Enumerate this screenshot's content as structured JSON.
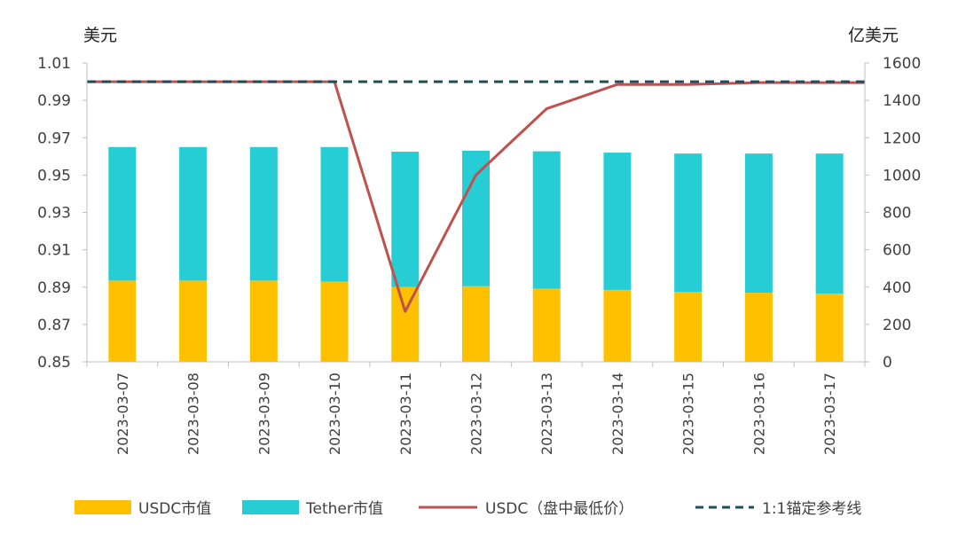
{
  "chart_data": {
    "type": "bar",
    "stacked": true,
    "left_axis_unit": "美元",
    "right_axis_unit": "亿美元",
    "categories": [
      "2023-03-07",
      "2023-03-08",
      "2023-03-09",
      "2023-03-10",
      "2023-03-11",
      "2023-03-12",
      "2023-03-13",
      "2023-03-14",
      "2023-03-15",
      "2023-03-16",
      "2023-03-17"
    ],
    "left_ylim": [
      0.85,
      1.01
    ],
    "left_ticks": [
      "0.85",
      "0.87",
      "0.89",
      "0.91",
      "0.93",
      "0.95",
      "0.97",
      "0.99",
      "1.01"
    ],
    "right_ylim": [
      0,
      1600
    ],
    "right_ticks": [
      "0",
      "200",
      "400",
      "600",
      "800",
      "1000",
      "1200",
      "1400",
      "1600"
    ],
    "bar_series": [
      {
        "name": "USDC市值",
        "color": "#FFC000",
        "axis": "right",
        "values": [
          435,
          435,
          435,
          430,
          400,
          405,
          392,
          385,
          375,
          370,
          365
        ]
      },
      {
        "name": "Tether市值",
        "color": "#26CDD5",
        "axis": "right",
        "values": [
          715,
          715,
          715,
          720,
          725,
          725,
          735,
          735,
          740,
          745,
          750
        ]
      }
    ],
    "line_series": [
      {
        "name": "USDC（盘中最低价）",
        "color": "#C0504D",
        "axis": "left",
        "values": [
          1.0,
          1.0,
          1.0,
          1.0,
          0.877,
          0.95,
          0.9855,
          0.9985,
          0.9985,
          0.9995,
          0.9995
        ]
      },
      {
        "name": "1:1锚定参考线",
        "color": "#1F4E5F",
        "axis": "left",
        "dashed": true,
        "values": [
          1.0,
          1.0,
          1.0,
          1.0,
          1.0,
          1.0,
          1.0,
          1.0,
          1.0,
          1.0,
          1.0
        ]
      }
    ],
    "legend_position": "bottom"
  }
}
